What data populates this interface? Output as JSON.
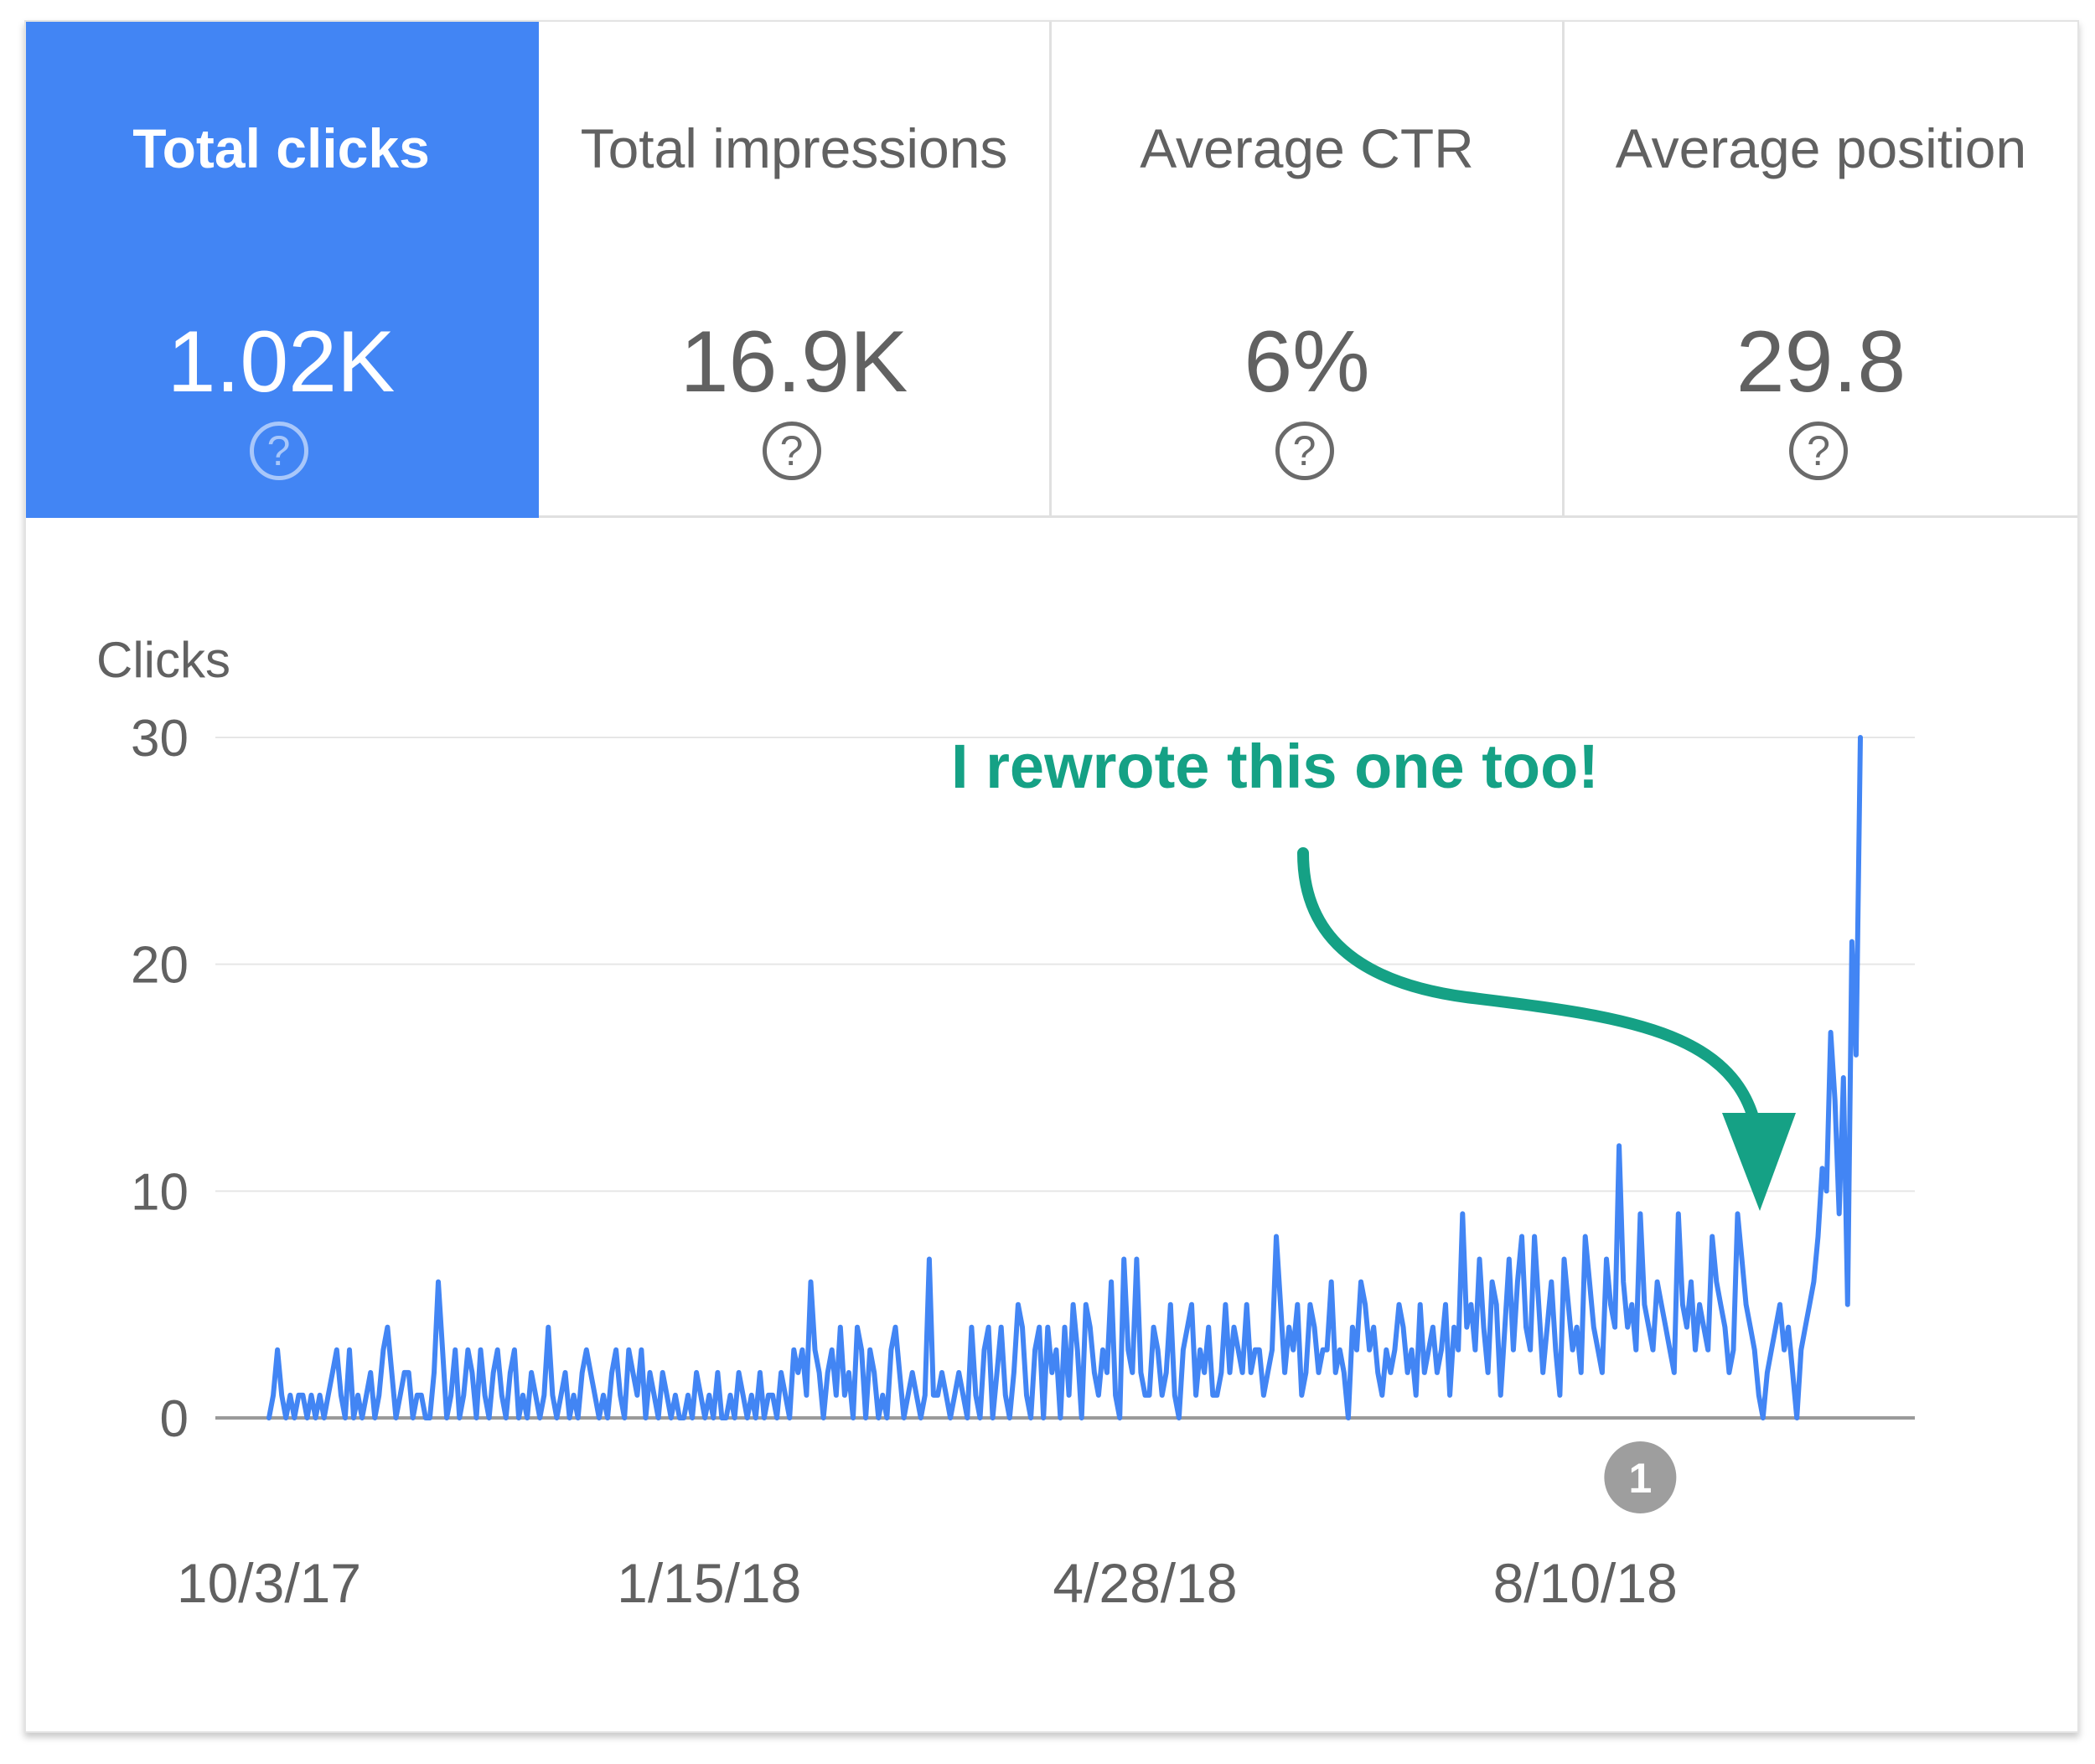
{
  "tiles": [
    {
      "label": "Total clicks",
      "value": "1.02K",
      "icon": "help-circle-icon",
      "selected": true
    },
    {
      "label": "Total impressions",
      "value": "16.9K",
      "icon": "help-circle-icon",
      "selected": false
    },
    {
      "label": "Average CTR",
      "value": "6%",
      "icon": "help-circle-icon",
      "selected": false
    },
    {
      "label": "Average position",
      "value": "29.8",
      "icon": "help-circle-icon",
      "selected": false
    }
  ],
  "help_glyph": "?",
  "colors": {
    "accent": "#4285f4",
    "line": "#4285f4",
    "annotation": "#15a185",
    "marker": "#9e9e9e"
  },
  "annotation": {
    "text": "I rewrote this one too!"
  },
  "event_marker": {
    "label": "1",
    "date": "2018-08-23"
  },
  "chart_data": {
    "type": "line",
    "ylabel": "Clicks",
    "xlabel": "",
    "ylim": [
      0,
      30
    ],
    "yticks": [
      0,
      10,
      20,
      30
    ],
    "xticks": [
      {
        "date": "2017-10-03",
        "label": "10/3/17"
      },
      {
        "date": "2018-01-15",
        "label": "1/15/18"
      },
      {
        "date": "2018-04-28",
        "label": "4/28/18"
      },
      {
        "date": "2018-08-10",
        "label": "8/10/18"
      }
    ],
    "grid": true,
    "series": [
      {
        "start_date": "2017-10-03",
        "interval_days": 1,
        "values": [
          0,
          1,
          3,
          1,
          0,
          1,
          0,
          1,
          1,
          0,
          1,
          0,
          1,
          0,
          1,
          2,
          3,
          1,
          0,
          3,
          0,
          1,
          0,
          1,
          2,
          0,
          1,
          3,
          4,
          2,
          0,
          1,
          2,
          2,
          0,
          1,
          1,
          0,
          0,
          2,
          6,
          3,
          0,
          1,
          3,
          0,
          1,
          3,
          2,
          0,
          3,
          1,
          0,
          2,
          3,
          1,
          0,
          2,
          3,
          0,
          1,
          0,
          2,
          1,
          0,
          1,
          4,
          1,
          0,
          1,
          2,
          0,
          1,
          0,
          2,
          3,
          2,
          1,
          0,
          1,
          0,
          2,
          3,
          1,
          0,
          3,
          2,
          1,
          3,
          0,
          2,
          1,
          0,
          2,
          1,
          0,
          1,
          0,
          0,
          1,
          0,
          2,
          1,
          0,
          1,
          0,
          2,
          0,
          0,
          1,
          0,
          2,
          1,
          0,
          1,
          0,
          2,
          0,
          1,
          1,
          0,
          2,
          1,
          0,
          3,
          2,
          3,
          1,
          6,
          3,
          2,
          0,
          2,
          3,
          1,
          4,
          1,
          2,
          0,
          4,
          3,
          0,
          3,
          2,
          0,
          1,
          0,
          3,
          4,
          2,
          0,
          1,
          2,
          1,
          0,
          1,
          7,
          1,
          1,
          2,
          1,
          0,
          1,
          2,
          1,
          0,
          4,
          1,
          0,
          3,
          4,
          0,
          2,
          4,
          1,
          0,
          2,
          5,
          4,
          1,
          0,
          3,
          4,
          0,
          4,
          2,
          3,
          0,
          4,
          1,
          5,
          3,
          0,
          5,
          4,
          2,
          1,
          3,
          2,
          6,
          1,
          0,
          7,
          3,
          2,
          7,
          2,
          1,
          1,
          4,
          3,
          1,
          2,
          5,
          1,
          0,
          3,
          4,
          5,
          1,
          3,
          2,
          4,
          1,
          1,
          2,
          5,
          2,
          4,
          3,
          2,
          5,
          2,
          3,
          3,
          1,
          2,
          3,
          8,
          5,
          2,
          4,
          3,
          5,
          1,
          2,
          5,
          4,
          2,
          3,
          3,
          6,
          2,
          3,
          2,
          0,
          4,
          3,
          6,
          5,
          3,
          4,
          2,
          1,
          3,
          2,
          3,
          5,
          4,
          2,
          3,
          1,
          5,
          2,
          3,
          4,
          2,
          3,
          5,
          1,
          4,
          3,
          9,
          4,
          5,
          3,
          7,
          4,
          2,
          6,
          5,
          1,
          4,
          7,
          3,
          6,
          8,
          4,
          3,
          8,
          5,
          2,
          4,
          6,
          3,
          1,
          7,
          5,
          3,
          4,
          2,
          8,
          6,
          4,
          3,
          2,
          7,
          5,
          4,
          12,
          6,
          4,
          5,
          3,
          9,
          5,
          4,
          3,
          6,
          5,
          4,
          3,
          2,
          9,
          5,
          4,
          6,
          3,
          5,
          4,
          3,
          8,
          6,
          5,
          4,
          2,
          3,
          9,
          7,
          5,
          4,
          3,
          1,
          0,
          2,
          3,
          4,
          5,
          3,
          4,
          2,
          0,
          3,
          4,
          5,
          6,
          8,
          11,
          10,
          17,
          14,
          9,
          15,
          5,
          21,
          16,
          30
        ]
      }
    ]
  }
}
